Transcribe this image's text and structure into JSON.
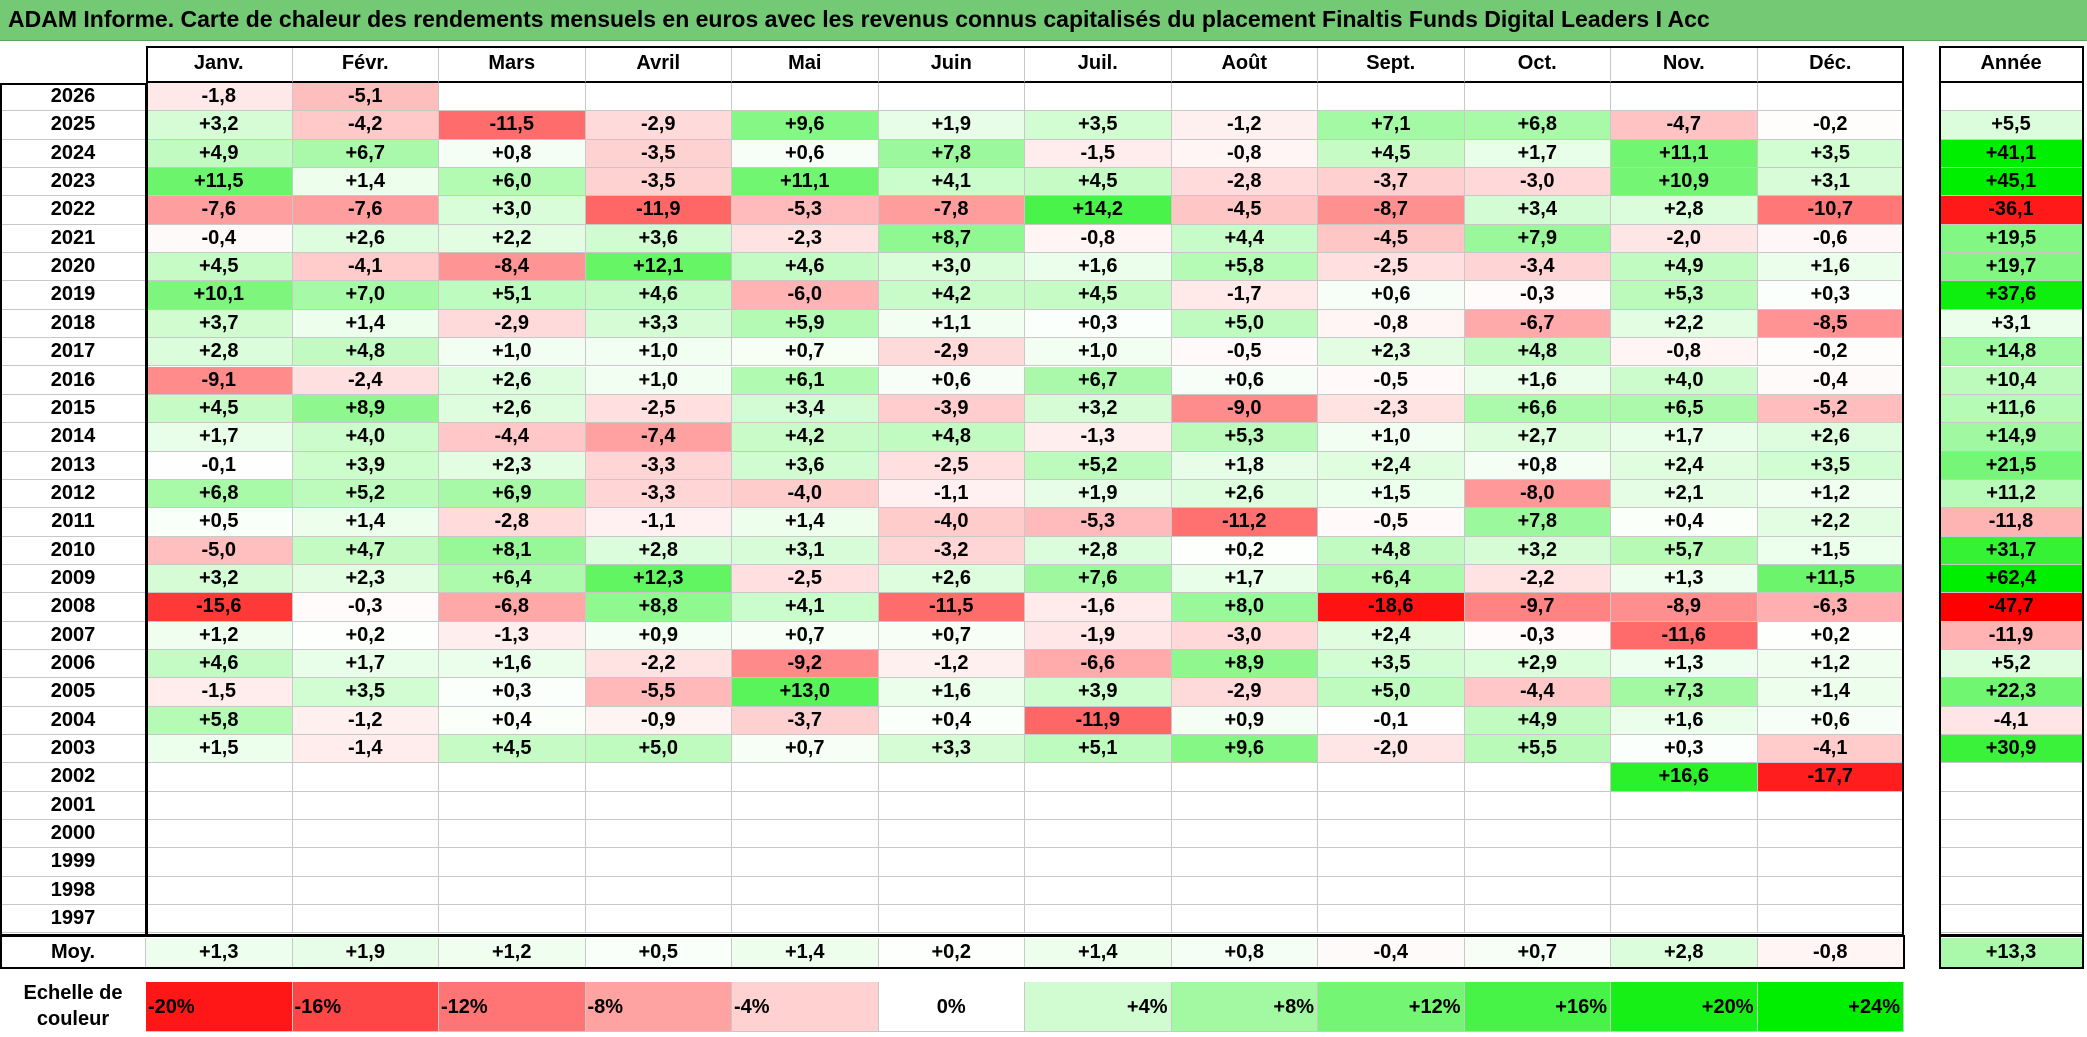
{
  "title": "ADAM Informe. Carte de chaleur des rendements mensuels en euros avec les revenus connus capitalisés du placement Finaltis Funds Digital Leaders I Acc",
  "chart_data": {
    "type": "heatmap",
    "title": "ADAM Informe. Carte de chaleur des rendements mensuels en euros avec les revenus connus capitalisés du placement Finaltis Funds Digital Leaders I Acc",
    "months": [
      "Janv.",
      "Févr.",
      "Mars",
      "Avril",
      "Mai",
      "Juin",
      "Juil.",
      "Août",
      "Sept.",
      "Oct.",
      "Nov.",
      "Déc."
    ],
    "year_header": "Année",
    "rows": [
      {
        "year": "2026",
        "values": [
          "-1,8",
          "-5,1",
          "",
          "",
          "",
          "",
          "",
          "",
          "",
          "",
          "",
          ""
        ],
        "annual": ""
      },
      {
        "year": "2025",
        "values": [
          "+3,2",
          "-4,2",
          "-11,5",
          "-2,9",
          "+9,6",
          "+1,9",
          "+3,5",
          "-1,2",
          "+7,1",
          "+6,8",
          "-4,7",
          "-0,2"
        ],
        "annual": "+5,5"
      },
      {
        "year": "2024",
        "values": [
          "+4,9",
          "+6,7",
          "+0,8",
          "-3,5",
          "+0,6",
          "+7,8",
          "-1,5",
          "-0,8",
          "+4,5",
          "+1,7",
          "+11,1",
          "+3,5"
        ],
        "annual": "+41,1"
      },
      {
        "year": "2023",
        "values": [
          "+11,5",
          "+1,4",
          "+6,0",
          "-3,5",
          "+11,1",
          "+4,1",
          "+4,5",
          "-2,8",
          "-3,7",
          "-3,0",
          "+10,9",
          "+3,1"
        ],
        "annual": "+45,1"
      },
      {
        "year": "2022",
        "values": [
          "-7,6",
          "-7,6",
          "+3,0",
          "-11,9",
          "-5,3",
          "-7,8",
          "+14,2",
          "-4,5",
          "-8,7",
          "+3,4",
          "+2,8",
          "-10,7"
        ],
        "annual": "-36,1"
      },
      {
        "year": "2021",
        "values": [
          "-0,4",
          "+2,6",
          "+2,2",
          "+3,6",
          "-2,3",
          "+8,7",
          "-0,8",
          "+4,4",
          "-4,5",
          "+7,9",
          "-2,0",
          "-0,6"
        ],
        "annual": "+19,5"
      },
      {
        "year": "2020",
        "values": [
          "+4,5",
          "-4,1",
          "-8,4",
          "+12,1",
          "+4,6",
          "+3,0",
          "+1,6",
          "+5,8",
          "-2,5",
          "-3,4",
          "+4,9",
          "+1,6"
        ],
        "annual": "+19,7"
      },
      {
        "year": "2019",
        "values": [
          "+10,1",
          "+7,0",
          "+5,1",
          "+4,6",
          "-6,0",
          "+4,2",
          "+4,5",
          "-1,7",
          "+0,6",
          "-0,3",
          "+5,3",
          "+0,3"
        ],
        "annual": "+37,6"
      },
      {
        "year": "2018",
        "values": [
          "+3,7",
          "+1,4",
          "-2,9",
          "+3,3",
          "+5,9",
          "+1,1",
          "+0,3",
          "+5,0",
          "-0,8",
          "-6,7",
          "+2,2",
          "-8,5"
        ],
        "annual": "+3,1"
      },
      {
        "year": "2017",
        "values": [
          "+2,8",
          "+4,8",
          "+1,0",
          "+1,0",
          "+0,7",
          "-2,9",
          "+1,0",
          "-0,5",
          "+2,3",
          "+4,8",
          "-0,8",
          "-0,2"
        ],
        "annual": "+14,8"
      },
      {
        "year": "2016",
        "values": [
          "-9,1",
          "-2,4",
          "+2,6",
          "+1,0",
          "+6,1",
          "+0,6",
          "+6,7",
          "+0,6",
          "-0,5",
          "+1,6",
          "+4,0",
          "-0,4"
        ],
        "annual": "+10,4"
      },
      {
        "year": "2015",
        "values": [
          "+4,5",
          "+8,9",
          "+2,6",
          "-2,5",
          "+3,4",
          "-3,9",
          "+3,2",
          "-9,0",
          "-2,3",
          "+6,6",
          "+6,5",
          "-5,2"
        ],
        "annual": "+11,6"
      },
      {
        "year": "2014",
        "values": [
          "+1,7",
          "+4,0",
          "-4,4",
          "-7,4",
          "+4,2",
          "+4,8",
          "-1,3",
          "+5,3",
          "+1,0",
          "+2,7",
          "+1,7",
          "+2,6"
        ],
        "annual": "+14,9"
      },
      {
        "year": "2013",
        "values": [
          "-0,1",
          "+3,9",
          "+2,3",
          "-3,3",
          "+3,6",
          "-2,5",
          "+5,2",
          "+1,8",
          "+2,4",
          "+0,8",
          "+2,4",
          "+3,5"
        ],
        "annual": "+21,5"
      },
      {
        "year": "2012",
        "values": [
          "+6,8",
          "+5,2",
          "+6,9",
          "-3,3",
          "-4,0",
          "-1,1",
          "+1,9",
          "+2,6",
          "+1,5",
          "-8,0",
          "+2,1",
          "+1,2"
        ],
        "annual": "+11,2"
      },
      {
        "year": "2011",
        "values": [
          "+0,5",
          "+1,4",
          "-2,8",
          "-1,1",
          "+1,4",
          "-4,0",
          "-5,3",
          "-11,2",
          "-0,5",
          "+7,8",
          "+0,4",
          "+2,2"
        ],
        "annual": "-11,8"
      },
      {
        "year": "2010",
        "values": [
          "-5,0",
          "+4,7",
          "+8,1",
          "+2,8",
          "+3,1",
          "-3,2",
          "+2,8",
          "+0,2",
          "+4,8",
          "+3,2",
          "+5,7",
          "+1,5"
        ],
        "annual": "+31,7"
      },
      {
        "year": "2009",
        "values": [
          "+3,2",
          "+2,3",
          "+6,4",
          "+12,3",
          "-2,5",
          "+2,6",
          "+7,6",
          "+1,7",
          "+6,4",
          "-2,2",
          "+1,3",
          "+11,5"
        ],
        "annual": "+62,4"
      },
      {
        "year": "2008",
        "values": [
          "-15,6",
          "-0,3",
          "-6,8",
          "+8,8",
          "+4,1",
          "-11,5",
          "-1,6",
          "+8,0",
          "-18,6",
          "-9,7",
          "-8,9",
          "-6,3"
        ],
        "annual": "-47,7"
      },
      {
        "year": "2007",
        "values": [
          "+1,2",
          "+0,2",
          "-1,3",
          "+0,9",
          "+0,7",
          "+0,7",
          "-1,9",
          "-3,0",
          "+2,4",
          "-0,3",
          "-11,6",
          "+0,2"
        ],
        "annual": "-11,9"
      },
      {
        "year": "2006",
        "values": [
          "+4,6",
          "+1,7",
          "+1,6",
          "-2,2",
          "-9,2",
          "-1,2",
          "-6,6",
          "+8,9",
          "+3,5",
          "+2,9",
          "+1,3",
          "+1,2"
        ],
        "annual": "+5,2"
      },
      {
        "year": "2005",
        "values": [
          "-1,5",
          "+3,5",
          "+0,3",
          "-5,5",
          "+13,0",
          "+1,6",
          "+3,9",
          "-2,9",
          "+5,0",
          "-4,4",
          "+7,3",
          "+1,4"
        ],
        "annual": "+22,3"
      },
      {
        "year": "2004",
        "values": [
          "+5,8",
          "-1,2",
          "+0,4",
          "-0,9",
          "-3,7",
          "+0,4",
          "-11,9",
          "+0,9",
          "-0,1",
          "+4,9",
          "+1,6",
          "+0,6"
        ],
        "annual": "-4,1"
      },
      {
        "year": "2003",
        "values": [
          "+1,5",
          "-1,4",
          "+4,5",
          "+5,0",
          "+0,7",
          "+3,3",
          "+5,1",
          "+9,6",
          "-2,0",
          "+5,5",
          "+0,3",
          "-4,1"
        ],
        "annual": "+30,9"
      },
      {
        "year": "2002",
        "values": [
          "",
          "",
          "",
          "",
          "",
          "",
          "",
          "",
          "",
          "",
          "+16,6",
          "-17,7"
        ],
        "annual": ""
      },
      {
        "year": "2001",
        "values": [
          "",
          "",
          "",
          "",
          "",
          "",
          "",
          "",
          "",
          "",
          "",
          ""
        ],
        "annual": ""
      },
      {
        "year": "2000",
        "values": [
          "",
          "",
          "",
          "",
          "",
          "",
          "",
          "",
          "",
          "",
          "",
          ""
        ],
        "annual": ""
      },
      {
        "year": "1999",
        "values": [
          "",
          "",
          "",
          "",
          "",
          "",
          "",
          "",
          "",
          "",
          "",
          ""
        ],
        "annual": ""
      },
      {
        "year": "1998",
        "values": [
          "",
          "",
          "",
          "",
          "",
          "",
          "",
          "",
          "",
          "",
          "",
          ""
        ],
        "annual": ""
      },
      {
        "year": "1997",
        "values": [
          "",
          "",
          "",
          "",
          "",
          "",
          "",
          "",
          "",
          "",
          "",
          ""
        ],
        "annual": ""
      }
    ],
    "average": {
      "label": "Moy.",
      "values": [
        "+1,3",
        "+1,9",
        "+1,2",
        "+0,5",
        "+1,4",
        "+0,2",
        "+1,4",
        "+0,8",
        "-0,4",
        "+0,7",
        "+2,8",
        "-0,8"
      ],
      "annual": "+13,3"
    },
    "color_scale": {
      "label": "Echelle de couleur",
      "stops": [
        "-20%",
        "-16%",
        "-12%",
        "-8%",
        "-4%",
        "0%",
        "+4%",
        "+8%",
        "+12%",
        "+16%",
        "+20%",
        "+24%"
      ]
    },
    "colors": {
      "negative_max": "#ff0000",
      "neutral": "#ffffff",
      "positive_max": "#00ee00",
      "title_bar": "#74c974"
    }
  }
}
